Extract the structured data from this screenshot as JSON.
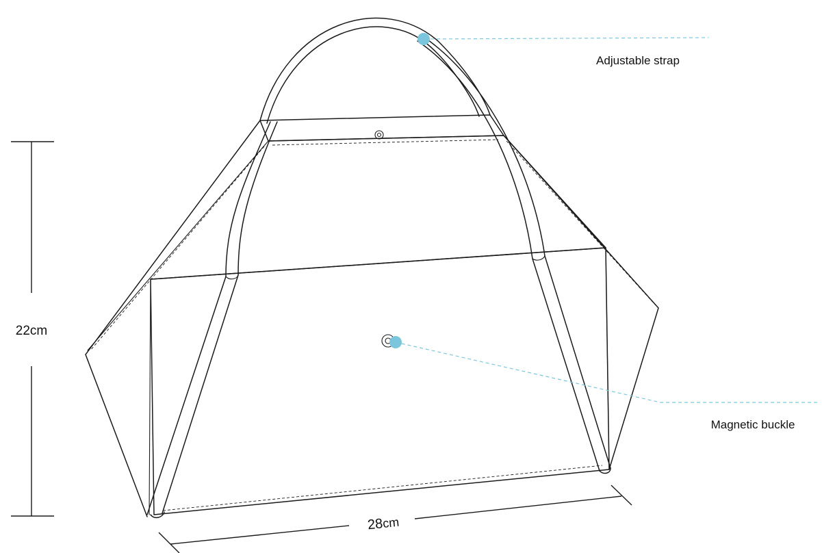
{
  "diagram": {
    "callouts": [
      {
        "id": "strap",
        "label": "Adjustable strap"
      },
      {
        "id": "buckle",
        "label": "Magnetic buckle"
      }
    ],
    "dimensions": {
      "height": "22cm",
      "width_number": "28",
      "width_unit": "cm"
    }
  },
  "colors": {
    "callout_accent": "#7cc6dd",
    "line": "#1a1a1a"
  }
}
